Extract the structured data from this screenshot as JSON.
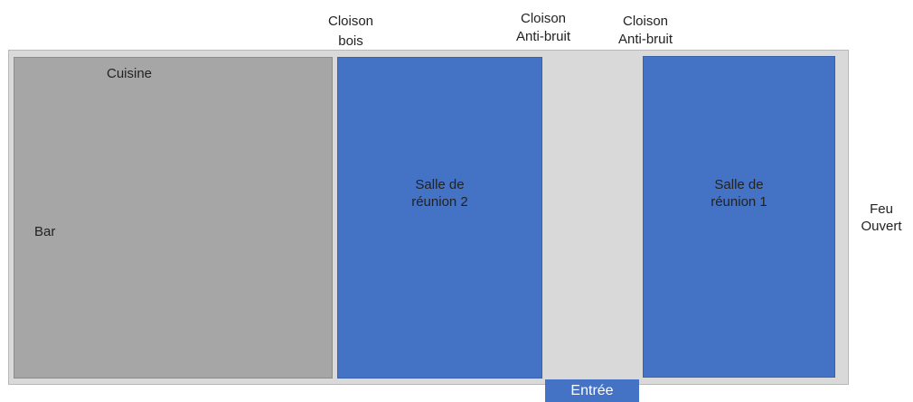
{
  "labels": {
    "cloison_bois_line1": "Cloison",
    "cloison_bois_line2": "bois",
    "cloison_ab1_line1": "Cloison",
    "cloison_ab1_line2": "Anti-bruit",
    "cloison_ab2_line1": "Cloison",
    "cloison_ab2_line2": "Anti-bruit",
    "feu_line1": "Feu",
    "feu_line2": "Ouvert"
  },
  "rooms": {
    "cuisine": "Cuisine",
    "bar": "Bar",
    "salle2_line1": "Salle de",
    "salle2_line2": "réunion 2",
    "salle1_line1": "Salle de",
    "salle1_line2": "réunion 1",
    "entree": "Entrée"
  },
  "colors": {
    "floor": "#d9d9d9",
    "kitchen": "#a6a6a6",
    "meeting_room": "#4472c4"
  }
}
